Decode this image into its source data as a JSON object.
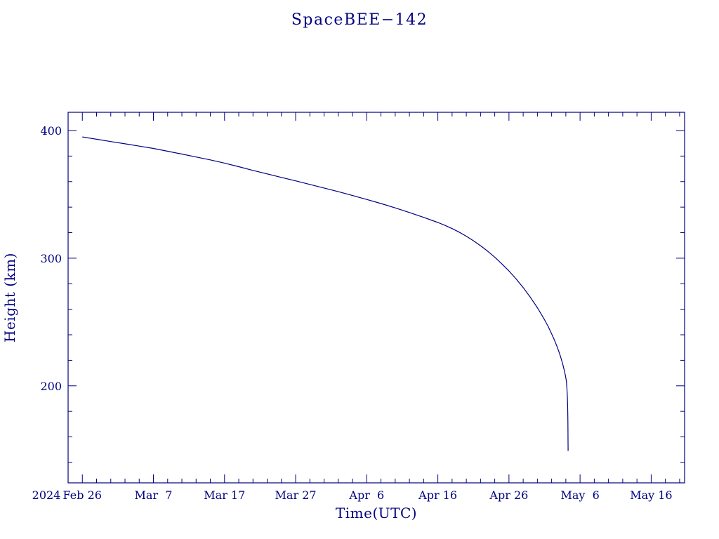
{
  "page": {
    "background": "#ffffff"
  },
  "chart_data": {
    "type": "line",
    "title": "SpaceBEE−142",
    "xlabel": "Time(UTC)",
    "ylabel": "Height (km)",
    "line_color": "#000080",
    "axis_color": "#000080",
    "x_unit": "days since 2024 Feb 26",
    "x_range": [
      -2,
      84.7
    ],
    "y_range": [
      124,
      414.3
    ],
    "x_minor_step": 2,
    "y_minor_step": 20,
    "year_label": "2024",
    "x_ticks": [
      {
        "value": 0,
        "label": "Feb 26"
      },
      {
        "value": 10,
        "label": "Mar  7"
      },
      {
        "value": 20,
        "label": "Mar 17"
      },
      {
        "value": 30,
        "label": "Mar 27"
      },
      {
        "value": 40,
        "label": "Apr  6"
      },
      {
        "value": 50,
        "label": "Apr 16"
      },
      {
        "value": 60,
        "label": "Apr 26"
      },
      {
        "value": 70,
        "label": "May  6"
      },
      {
        "value": 80,
        "label": "May 16"
      }
    ],
    "y_ticks": [
      {
        "value": 200,
        "label": "200"
      },
      {
        "value": 300,
        "label": "300"
      },
      {
        "value": 400,
        "label": "400"
      }
    ],
    "series": [
      {
        "name": "Height (km)",
        "points": [
          [
            0,
            395
          ],
          [
            2,
            393.2
          ],
          [
            4,
            391.4
          ],
          [
            6,
            389.6
          ],
          [
            8,
            387.8
          ],
          [
            10,
            386
          ],
          [
            12,
            383.8
          ],
          [
            14,
            381.6
          ],
          [
            16,
            379.3
          ],
          [
            18,
            377
          ],
          [
            20,
            374.5
          ],
          [
            22,
            371.7
          ],
          [
            24,
            368.8
          ],
          [
            26,
            366
          ],
          [
            28,
            363.3
          ],
          [
            30,
            360.6
          ],
          [
            32,
            357.8
          ],
          [
            34,
            355
          ],
          [
            36,
            352.1
          ],
          [
            38,
            349.1
          ],
          [
            40,
            346
          ],
          [
            42,
            342.8
          ],
          [
            44,
            339.4
          ],
          [
            46,
            335.8
          ],
          [
            48,
            332
          ],
          [
            50,
            328
          ],
          [
            51,
            325.7
          ],
          [
            52,
            323.2
          ],
          [
            53,
            320.4
          ],
          [
            54,
            317.2
          ],
          [
            55,
            313.7
          ],
          [
            56,
            309.8
          ],
          [
            57,
            305.5
          ],
          [
            58,
            300.8
          ],
          [
            59,
            295.6
          ],
          [
            60,
            290
          ],
          [
            61,
            283.8
          ],
          [
            62,
            277
          ],
          [
            63,
            269.5
          ],
          [
            64,
            261.2
          ],
          [
            65,
            251.8
          ],
          [
            65.5,
            246.6
          ],
          [
            66,
            240.8
          ],
          [
            66.4,
            235.8
          ],
          [
            66.8,
            230.2
          ],
          [
            67.1,
            225.5
          ],
          [
            67.4,
            220.2
          ],
          [
            67.6,
            216.2
          ],
          [
            67.8,
            211.6
          ],
          [
            67.95,
            207.7
          ],
          [
            68.05,
            204.5
          ],
          [
            68.1,
            202
          ],
          [
            68.15,
            198
          ],
          [
            68.2,
            193
          ],
          [
            68.24,
            187
          ],
          [
            68.27,
            180
          ],
          [
            68.29,
            172
          ],
          [
            68.3,
            165
          ],
          [
            68.31,
            156
          ],
          [
            68.315,
            149
          ]
        ]
      }
    ]
  }
}
